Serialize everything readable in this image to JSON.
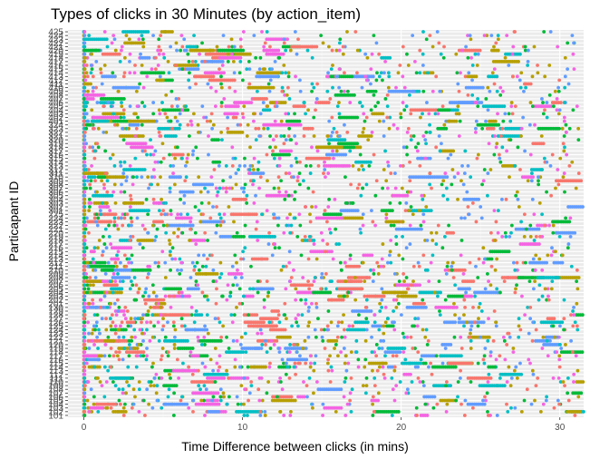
{
  "chart_data": {
    "type": "scatter",
    "title": "Types of clicks in 30 Minutes (by action_item)",
    "xlabel": "Time Difference between clicks (in mins)",
    "ylabel": "Particapant ID",
    "xlim": [
      -1,
      31.5
    ],
    "x_ticks": [
      0,
      10,
      20,
      30
    ],
    "y_categories": [
      "101",
      "102",
      "103",
      "104",
      "105",
      "106",
      "107",
      "108",
      "109",
      "110",
      "111",
      "112",
      "113",
      "114",
      "115",
      "116",
      "117",
      "118",
      "119",
      "120",
      "121",
      "122",
      "123",
      "124",
      "125",
      "126",
      "127",
      "128",
      "129",
      "130",
      "201",
      "202",
      "203",
      "204",
      "205",
      "206",
      "207",
      "208",
      "209",
      "210",
      "211",
      "212",
      "213",
      "214",
      "215",
      "216",
      "217",
      "218",
      "219",
      "220",
      "221",
      "222",
      "223",
      "224",
      "225",
      "301",
      "302",
      "303",
      "304",
      "305",
      "306",
      "307",
      "308",
      "309",
      "310",
      "311",
      "312",
      "313",
      "314",
      "315",
      "316",
      "317",
      "318",
      "319",
      "320",
      "321",
      "322",
      "323",
      "324",
      "401",
      "402",
      "403",
      "404",
      "405",
      "406",
      "407",
      "408",
      "409",
      "410",
      "411",
      "412",
      "413",
      "414",
      "415",
      "416",
      "417",
      "418",
      "419",
      "420",
      "421",
      "422",
      "423",
      "424",
      "425"
    ],
    "series_colors": [
      "#00BA38",
      "#F564E3",
      "#B79F00",
      "#619CFF",
      "#00BFC4",
      "#F8766D"
    ],
    "grid": true,
    "legend": "none",
    "points_per_row_approx": 30
  }
}
